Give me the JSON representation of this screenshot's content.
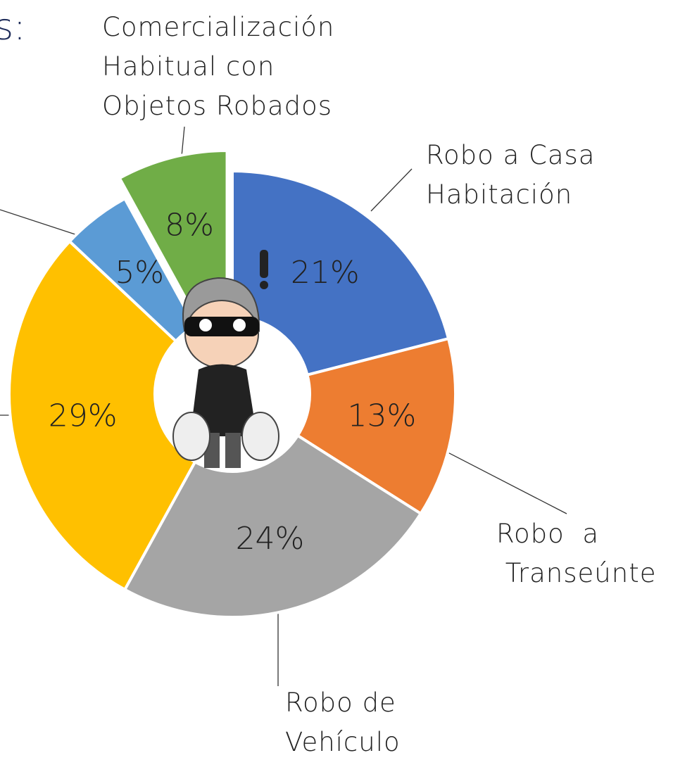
{
  "chart_data": {
    "type": "donut",
    "title": "s:",
    "categories": [
      "Robo a Casa\nHabitación",
      "Robo  a\n Transeúnte",
      "Robo de\nVehículo",
      null,
      null,
      "Comercialización\nHabitual con\nObjetos Robados"
    ],
    "values": [
      21,
      13,
      24,
      29,
      5,
      8
    ],
    "value_labels": [
      "21%",
      "13%",
      "24%",
      "29%",
      "5%",
      "8%"
    ],
    "colors": [
      "#4472c4",
      "#ed7d31",
      "#a5a5a5",
      "#ffc000",
      "#5b9bd5",
      "#70ad47"
    ]
  }
}
